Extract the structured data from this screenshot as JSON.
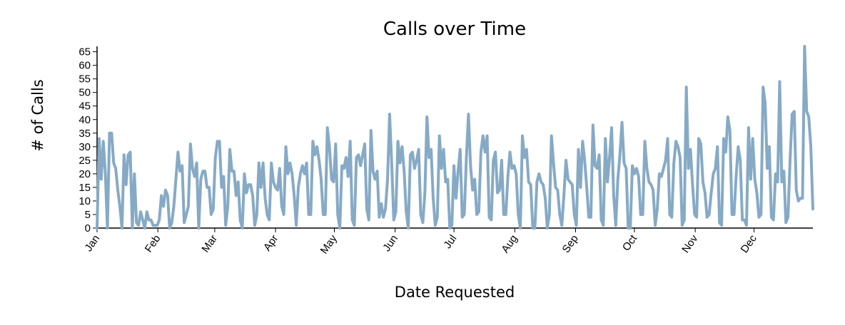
{
  "chart_data": {
    "type": "line",
    "title": "Calls over Time",
    "xlabel": "Date Requested",
    "ylabel": "# of Calls",
    "x_start": "2016-01-01",
    "x_end": "2016-12-31",
    "xlim": [
      "2016-01-01",
      "2016-12-31"
    ],
    "ylim": [
      0,
      67
    ],
    "y_ticks": [
      0,
      5,
      10,
      15,
      20,
      25,
      30,
      35,
      40,
      45,
      50,
      55,
      60,
      65
    ],
    "x_tick_labels": [
      "Jan",
      "Feb",
      "Mar",
      "Apr",
      "May",
      "Jun",
      "Jul",
      "Aug",
      "Sep",
      "Oct",
      "Nov",
      "Dec"
    ],
    "x_tick_dates": [
      "2016-01-01",
      "2016-02-01",
      "2016-03-01",
      "2016-04-01",
      "2016-05-01",
      "2016-06-01",
      "2016-07-01",
      "2016-08-01",
      "2016-09-01",
      "2016-10-01",
      "2016-11-01",
      "2016-12-01"
    ],
    "grid": false,
    "line_color": "#86aac6",
    "series": [
      {
        "values": [
          0,
          33,
          18,
          32,
          20,
          0,
          35,
          35,
          24,
          22,
          14,
          8,
          0,
          27,
          16,
          27,
          28,
          0,
          20,
          2,
          1,
          6,
          3,
          0,
          6,
          3,
          3,
          1,
          1,
          1,
          3,
          12,
          8,
          14,
          12,
          0,
          2,
          8,
          18,
          28,
          21,
          23,
          2,
          5,
          8,
          31,
          22,
          19,
          24,
          0,
          18,
          21,
          21,
          15,
          15,
          5,
          7,
          26,
          32,
          32,
          15,
          19,
          1,
          8,
          29,
          21,
          21,
          12,
          17,
          3,
          0,
          20,
          13,
          16,
          16,
          12,
          1,
          5,
          24,
          15,
          24,
          11,
          5,
          3,
          24,
          17,
          15,
          14,
          22,
          8,
          5,
          30,
          20,
          24,
          20,
          12,
          1,
          15,
          20,
          23,
          20,
          24,
          5,
          5,
          32,
          27,
          30,
          25,
          18,
          5,
          5,
          37,
          30,
          18,
          17,
          31,
          5,
          0,
          23,
          22,
          26,
          19,
          32,
          3,
          1,
          26,
          27,
          23,
          27,
          31,
          7,
          3,
          36,
          21,
          18,
          21,
          4,
          9,
          4,
          7,
          18,
          42,
          24,
          3,
          6,
          32,
          24,
          30,
          21,
          6,
          0,
          27,
          28,
          22,
          25,
          29,
          5,
          2,
          13,
          41,
          26,
          29,
          11,
          1,
          4,
          34,
          22,
          29,
          17,
          18,
          0,
          1,
          23,
          11,
          21,
          29,
          4,
          5,
          26,
          42,
          23,
          14,
          18,
          5,
          6,
          28,
          34,
          28,
          34,
          4,
          3,
          25,
          28,
          13,
          14,
          25,
          5,
          5,
          19,
          28,
          22,
          23,
          20,
          5,
          0,
          34,
          26,
          29,
          17,
          16,
          0,
          0,
          17,
          20,
          17,
          16,
          11,
          0,
          5,
          34,
          24,
          15,
          14,
          5,
          1,
          12,
          25,
          18,
          17,
          16,
          5,
          1,
          29,
          15,
          32,
          25,
          15,
          4,
          4,
          38,
          23,
          22,
          27,
          3,
          1,
          33,
          17,
          26,
          37,
          12,
          1,
          18,
          27,
          39,
          24,
          22,
          0,
          0,
          23,
          20,
          22,
          19,
          5,
          5,
          32,
          22,
          17,
          16,
          14,
          1,
          7,
          20,
          19,
          22,
          25,
          33,
          5,
          4,
          24,
          32,
          30,
          26,
          1,
          3,
          52,
          22,
          29,
          16,
          5,
          4,
          33,
          31,
          17,
          13,
          4,
          5,
          13,
          20,
          22,
          30,
          2,
          1,
          33,
          28,
          41,
          36,
          5,
          5,
          19,
          30,
          25,
          3,
          3,
          1,
          37,
          18,
          33,
          18,
          13,
          4,
          5,
          52,
          46,
          22,
          30,
          4,
          3,
          20,
          17,
          54,
          17,
          21,
          2,
          4,
          25,
          42,
          43,
          14,
          10,
          11,
          11,
          67,
          43,
          41,
          30,
          7
        ]
      }
    ]
  }
}
